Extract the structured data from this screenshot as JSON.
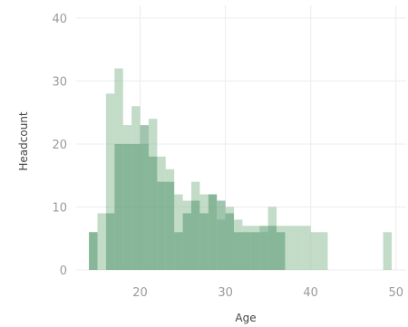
{
  "chart_data": {
    "type": "bar",
    "title": "",
    "xlabel": "Age",
    "ylabel": "Headcount",
    "xlim": [
      12.5,
      51.2
    ],
    "ylim": [
      0,
      42
    ],
    "x_ticks": [
      20,
      30,
      40,
      50
    ],
    "y_ticks": [
      0,
      10,
      20,
      30,
      40
    ],
    "grid": true,
    "bin_width": 1,
    "series": [
      {
        "color": "#8fbf9a",
        "bars": [
          {
            "x": 14,
            "value": 6
          },
          {
            "x": 15,
            "value": 9
          },
          {
            "x": 16,
            "value": 28
          },
          {
            "x": 17,
            "value": 32
          },
          {
            "x": 18,
            "value": 23
          },
          {
            "x": 19,
            "value": 26
          },
          {
            "x": 20,
            "value": 20
          },
          {
            "x": 21,
            "value": 24
          },
          {
            "x": 22,
            "value": 18
          },
          {
            "x": 23,
            "value": 16
          },
          {
            "x": 24,
            "value": 12
          },
          {
            "x": 25,
            "value": 11
          },
          {
            "x": 26,
            "value": 14
          },
          {
            "x": 27,
            "value": 12
          },
          {
            "x": 28,
            "value": 12
          },
          {
            "x": 29,
            "value": 8
          },
          {
            "x": 30,
            "value": 10
          },
          {
            "x": 31,
            "value": 8
          },
          {
            "x": 32,
            "value": 7
          },
          {
            "x": 33,
            "value": 7
          },
          {
            "x": 34,
            "value": 6
          },
          {
            "x": 35,
            "value": 10
          },
          {
            "x": 36,
            "value": 7
          },
          {
            "x": 37,
            "value": 7
          },
          {
            "x": 38,
            "value": 7
          },
          {
            "x": 39,
            "value": 7
          },
          {
            "x": 40,
            "value": 6
          },
          {
            "x": 41,
            "value": 6
          },
          {
            "x": 48.5,
            "value": 6
          }
        ]
      },
      {
        "color": "#5f9f78",
        "bars": [
          {
            "x": 14,
            "value": 6
          },
          {
            "x": 16,
            "value": 9
          },
          {
            "x": 17,
            "value": 20
          },
          {
            "x": 18,
            "value": 20
          },
          {
            "x": 19,
            "value": 20
          },
          {
            "x": 20,
            "value": 23
          },
          {
            "x": 21,
            "value": 18
          },
          {
            "x": 22,
            "value": 14
          },
          {
            "x": 23,
            "value": 14
          },
          {
            "x": 24,
            "value": 6
          },
          {
            "x": 25,
            "value": 9
          },
          {
            "x": 26,
            "value": 11
          },
          {
            "x": 27,
            "value": 9
          },
          {
            "x": 28,
            "value": 12
          },
          {
            "x": 29,
            "value": 11
          },
          {
            "x": 30,
            "value": 9
          },
          {
            "x": 31,
            "value": 6
          },
          {
            "x": 32,
            "value": 6
          },
          {
            "x": 33,
            "value": 6
          },
          {
            "x": 34,
            "value": 7
          },
          {
            "x": 35,
            "value": 7
          },
          {
            "x": 36,
            "value": 6
          }
        ]
      }
    ]
  }
}
